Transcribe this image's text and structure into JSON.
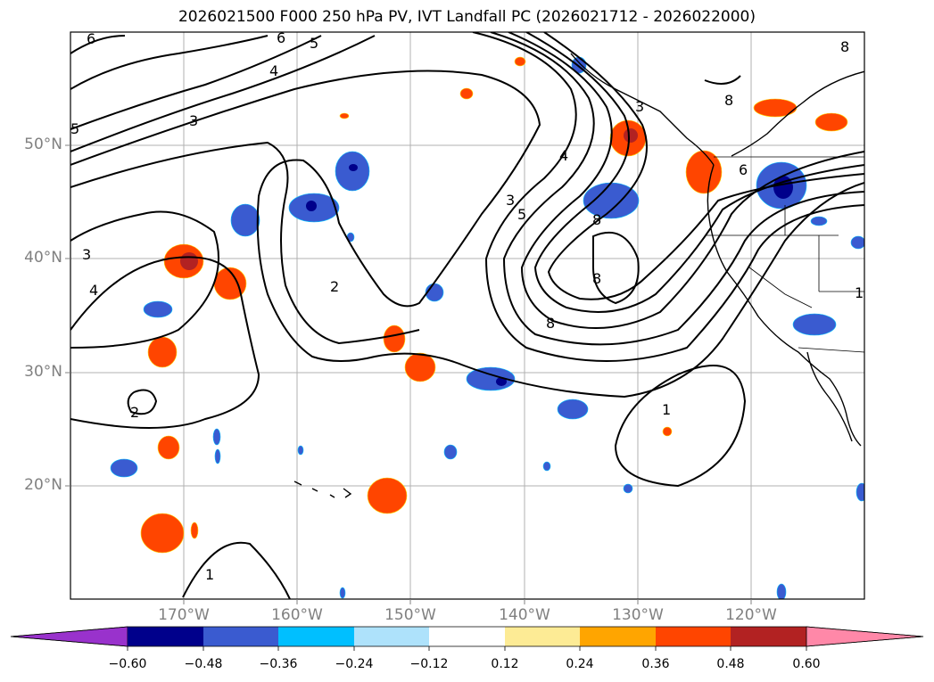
{
  "figure": {
    "title": "2026021500 F000 250 hPa PV, IVT Landfall PC (2026021712 - 2026022000)"
  },
  "map": {
    "lat_labels": [
      "50°N",
      "40°N",
      "30°N",
      "20°N"
    ],
    "lon_labels": [
      "170°W",
      "160°W",
      "150°W",
      "140°W",
      "130°W",
      "120°W"
    ],
    "contour_labels": [
      "6",
      "6",
      "5",
      "4",
      "3",
      "3",
      "4",
      "5",
      "3",
      "4",
      "2",
      "2",
      "3",
      "5",
      "8",
      "8",
      "8",
      "8",
      "8",
      "6",
      "1",
      "1",
      "1"
    ]
  },
  "colorbar": {
    "colors": [
      "#9932cc",
      "#00008b",
      "#3a5bd0",
      "#00bfff",
      "#aee2fb",
      "#ffffff",
      "#fdeb95",
      "#ffa500",
      "#ff4500",
      "#b22222",
      "#ff88a8"
    ],
    "ticks": [
      "−0.60",
      "−0.48",
      "−0.36",
      "−0.24",
      "−0.12",
      "0.12",
      "0.24",
      "0.36",
      "0.48",
      "0.60"
    ]
  }
}
